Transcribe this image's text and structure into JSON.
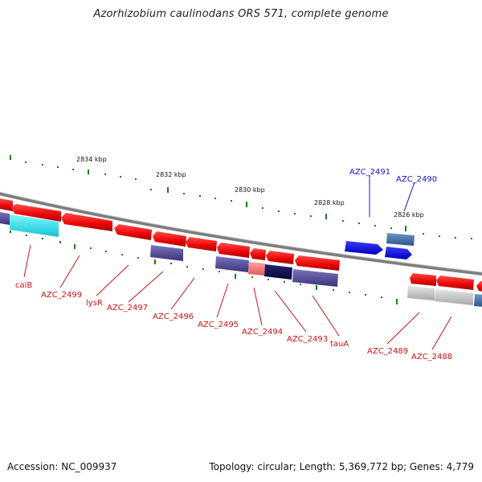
{
  "header": {
    "title": "Azorhizobium caulinodans ORS 571, complete genome"
  },
  "footer": {
    "accession": "Accession: NC_009937",
    "topology": "Topology: circular; Length: 5,369,772 bp; Genes: 4,779"
  },
  "coordinate_labels": [
    "2834 kbp",
    "2832 kbp",
    "2830 kbp",
    "2828 kbp",
    "2826 kbp"
  ],
  "gene_labels": {
    "caiB": "caiB",
    "azc_2499": "AZC_2499",
    "lysR": "lysR",
    "azc_2497": "AZC_2497",
    "azc_2496": "AZC_2496",
    "azc_2495": "AZC_2495",
    "azc_2494": "AZC_2494",
    "azc_2493": "AZC_2493",
    "tauA": "tauA",
    "azc_2491": "AZC_2491",
    "azc_2490": "AZC_2490",
    "azc_2489": "AZC_2489",
    "azc_2488": "AZC_2488"
  },
  "colors": {
    "backbone": "#8a8a8a",
    "gene_red": "#f01010",
    "gene_blue_label": "#1414c8",
    "gene_red_label": "#c81414",
    "tick_green": "#1e7a1e"
  }
}
